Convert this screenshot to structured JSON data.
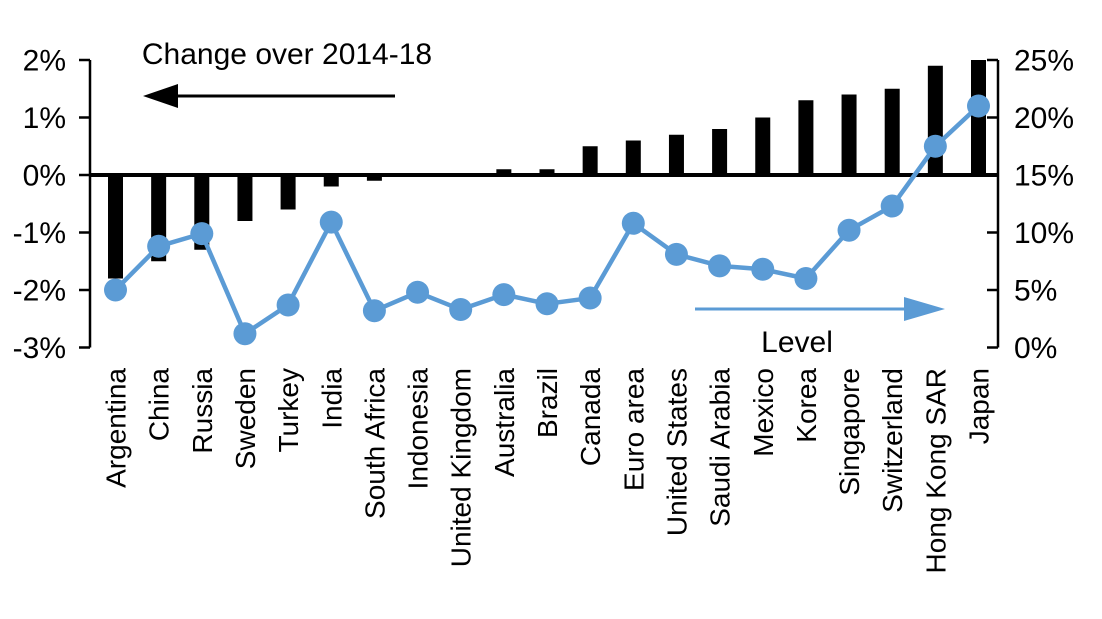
{
  "chart_data": {
    "type": "bar",
    "subtype": "combo-bar-line-dual-axis",
    "title": "",
    "grid": false,
    "legend_position": "in-chart annotations with arrows",
    "categories": [
      "Argentina",
      "China",
      "Russia",
      "Sweden",
      "Turkey",
      "India",
      "South Africa",
      "Indonesia",
      "United Kingdom",
      "Australia",
      "Brazil",
      "Canada",
      "Euro area",
      "United States",
      "Saudi Arabia",
      "Mexico",
      "Korea",
      "Singapore",
      "Switzerland",
      "Hong Kong SAR",
      "Japan"
    ],
    "series": [
      {
        "name": "Change over 2014-18",
        "type": "bar",
        "axis": "left",
        "color": "#000000",
        "unit": "%",
        "values": [
          -1.8,
          -1.5,
          -1.3,
          -0.8,
          -0.6,
          -0.2,
          -0.1,
          0,
          0,
          0.1,
          0.1,
          0.5,
          0.6,
          0.7,
          0.8,
          1.0,
          1.3,
          1.4,
          1.5,
          1.9,
          2.0
        ]
      },
      {
        "name": "Level",
        "type": "line",
        "axis": "right",
        "color": "#5B9BD5",
        "unit": "%",
        "values": [
          5.0,
          8.8,
          9.9,
          1.2,
          3.7,
          10.9,
          3.2,
          4.8,
          3.3,
          4.6,
          3.8,
          4.3,
          10.8,
          8.1,
          7.1,
          6.8,
          6.0,
          10.2,
          12.3,
          17.5,
          21.0
        ]
      }
    ],
    "left_axis": {
      "min": -3,
      "max": 2,
      "step": 1,
      "tick_labels": [
        "2%",
        "1%",
        "0%",
        "-1%",
        "-2%",
        "-3%"
      ],
      "tick_values": [
        2,
        1,
        0,
        -1,
        -2,
        -3
      ]
    },
    "right_axis": {
      "min": 0,
      "max": 25,
      "step": 5,
      "tick_labels": [
        "25%",
        "20%",
        "15%",
        "10%",
        "5%",
        "0%"
      ],
      "tick_values": [
        25,
        20,
        15,
        10,
        5,
        0
      ]
    },
    "annotations": [
      {
        "id": "change-annotation",
        "text": "Change over 2014-18",
        "arrow_dir": "left",
        "color": "#000000"
      },
      {
        "id": "level-annotation",
        "text": "Level",
        "arrow_dir": "right",
        "color": "#5B9BD5"
      }
    ]
  },
  "colors": {
    "bar": "#000000",
    "line": "#5B9BD5",
    "background": "#FFFFFF",
    "text": "#000000"
  }
}
